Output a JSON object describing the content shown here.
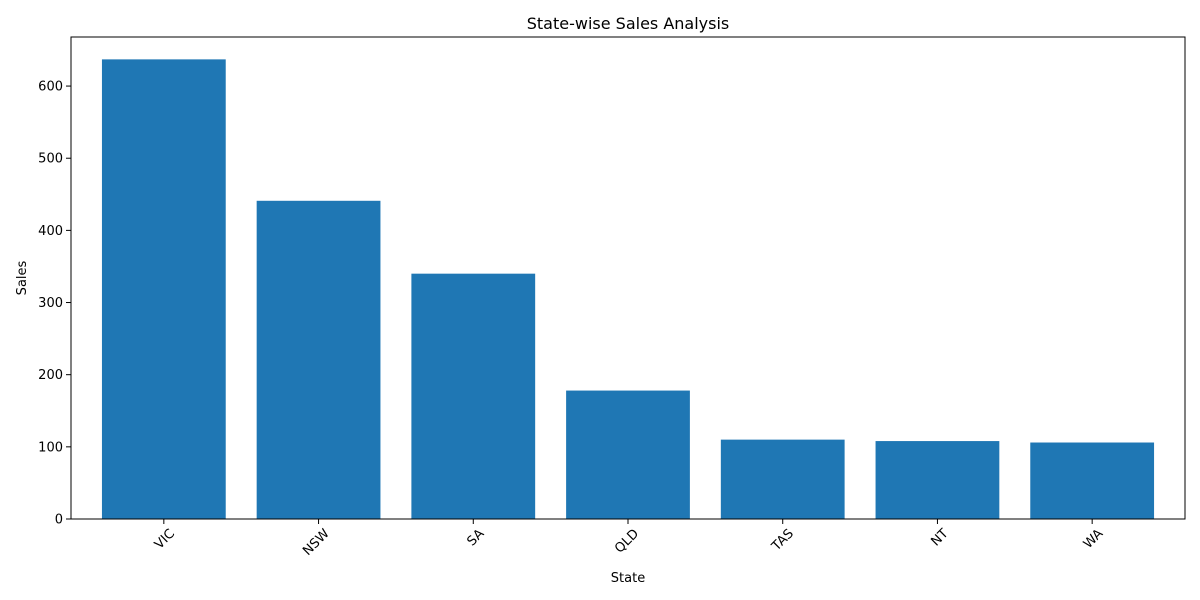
{
  "chart_data": {
    "type": "bar",
    "title": "State-wise Sales Analysis",
    "xlabel": "State",
    "ylabel": "Sales",
    "categories": [
      "VIC",
      "NSW",
      "SA",
      "QLD",
      "TAS",
      "NT",
      "WA"
    ],
    "values": [
      637,
      441,
      340,
      178,
      110,
      108,
      106
    ],
    "ylim": [
      0,
      668
    ],
    "yticks": [
      0,
      100,
      200,
      300,
      400,
      500,
      600
    ],
    "xtick_rotation": 45,
    "grid": false,
    "legend": "none",
    "bar_color": "#1f77b4"
  }
}
